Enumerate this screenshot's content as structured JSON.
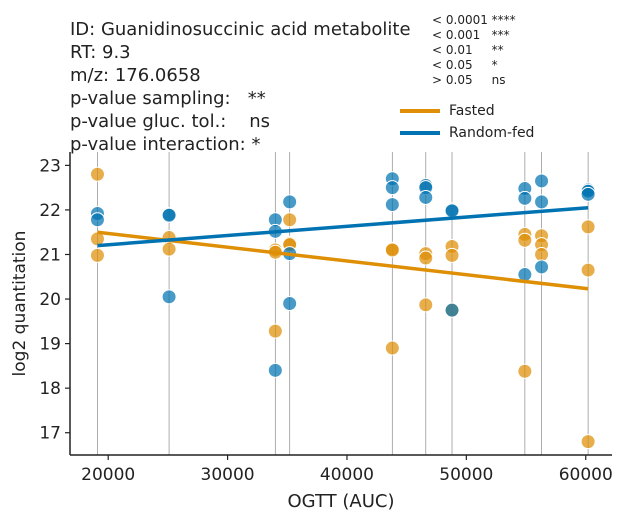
{
  "title_lines": [
    "ID: Guanidinosuccinic acid metabolite",
    "RT: 9.3",
    "m/z: 176.0658",
    "p-value sampling:   **",
    "p-value gluc. tol.:    ns",
    "p-value interaction: *"
  ],
  "significance_key": [
    "< 0.0001 ****",
    "< 0.001   ***",
    "< 0.01     **",
    "< 0.05     *",
    "> 0.05     ns"
  ],
  "colors": {
    "fasted": "#de8f05",
    "random_fed": "#0173b2",
    "vline": "#999999",
    "axis": "#222222"
  },
  "chart_data": {
    "type": "scatter",
    "xlabel": "OGTT (AUC)",
    "ylabel": "log2 quantitation",
    "xlim": [
      16800,
      62200
    ],
    "ylim": [
      16.5,
      23.3
    ],
    "xticks": [
      20000,
      30000,
      40000,
      50000,
      60000
    ],
    "yticks": [
      17,
      18,
      19,
      20,
      21,
      22,
      23
    ],
    "legend_position": "top-right",
    "vlines": [
      19100,
      25100,
      34000,
      35200,
      43800,
      46600,
      48800,
      54900,
      56300,
      60200
    ],
    "series": [
      {
        "name": "Fasted",
        "points": [
          [
            19100,
            22.8
          ],
          [
            19100,
            21.35
          ],
          [
            19100,
            20.98
          ],
          [
            25100,
            21.38
          ],
          [
            25100,
            21.12
          ],
          [
            34000,
            21.1
          ],
          [
            34000,
            21.05
          ],
          [
            34000,
            19.28
          ],
          [
            35200,
            21.78
          ],
          [
            35200,
            21.25
          ],
          [
            35200,
            21.22
          ],
          [
            43800,
            21.12
          ],
          [
            43800,
            21.1
          ],
          [
            43800,
            18.9
          ],
          [
            46600,
            21.02
          ],
          [
            46600,
            20.92
          ],
          [
            46600,
            19.87
          ],
          [
            48800,
            21.18
          ],
          [
            48800,
            20.98
          ],
          [
            48800,
            19.75
          ],
          [
            54900,
            21.45
          ],
          [
            54900,
            21.32
          ],
          [
            54900,
            18.38
          ],
          [
            56300,
            21.42
          ],
          [
            56300,
            21.22
          ],
          [
            56300,
            21.0
          ],
          [
            60200,
            21.62
          ],
          [
            60200,
            20.65
          ],
          [
            60200,
            16.8
          ]
        ],
        "fit": [
          [
            19100,
            21.5
          ],
          [
            60200,
            20.23
          ]
        ]
      },
      {
        "name": "Random-fed",
        "points": [
          [
            19100,
            21.92
          ],
          [
            19100,
            21.78
          ],
          [
            25100,
            21.9
          ],
          [
            25100,
            21.88
          ],
          [
            25100,
            20.05
          ],
          [
            34000,
            21.78
          ],
          [
            34000,
            21.52
          ],
          [
            34000,
            18.4
          ],
          [
            35200,
            22.18
          ],
          [
            35200,
            21.02
          ],
          [
            35200,
            19.9
          ],
          [
            43800,
            22.7
          ],
          [
            43800,
            22.5
          ],
          [
            43800,
            22.12
          ],
          [
            46600,
            22.55
          ],
          [
            46600,
            22.5
          ],
          [
            46600,
            22.28
          ],
          [
            48800,
            22.0
          ],
          [
            48800,
            21.98
          ],
          [
            48800,
            19.75
          ],
          [
            54900,
            22.48
          ],
          [
            54900,
            22.26
          ],
          [
            54900,
            20.55
          ],
          [
            56300,
            22.65
          ],
          [
            56300,
            22.18
          ],
          [
            56300,
            20.72
          ],
          [
            60200,
            22.45
          ],
          [
            60200,
            22.42
          ],
          [
            60200,
            22.35
          ]
        ],
        "fit": [
          [
            19100,
            21.2
          ],
          [
            60200,
            22.05
          ]
        ]
      }
    ]
  }
}
